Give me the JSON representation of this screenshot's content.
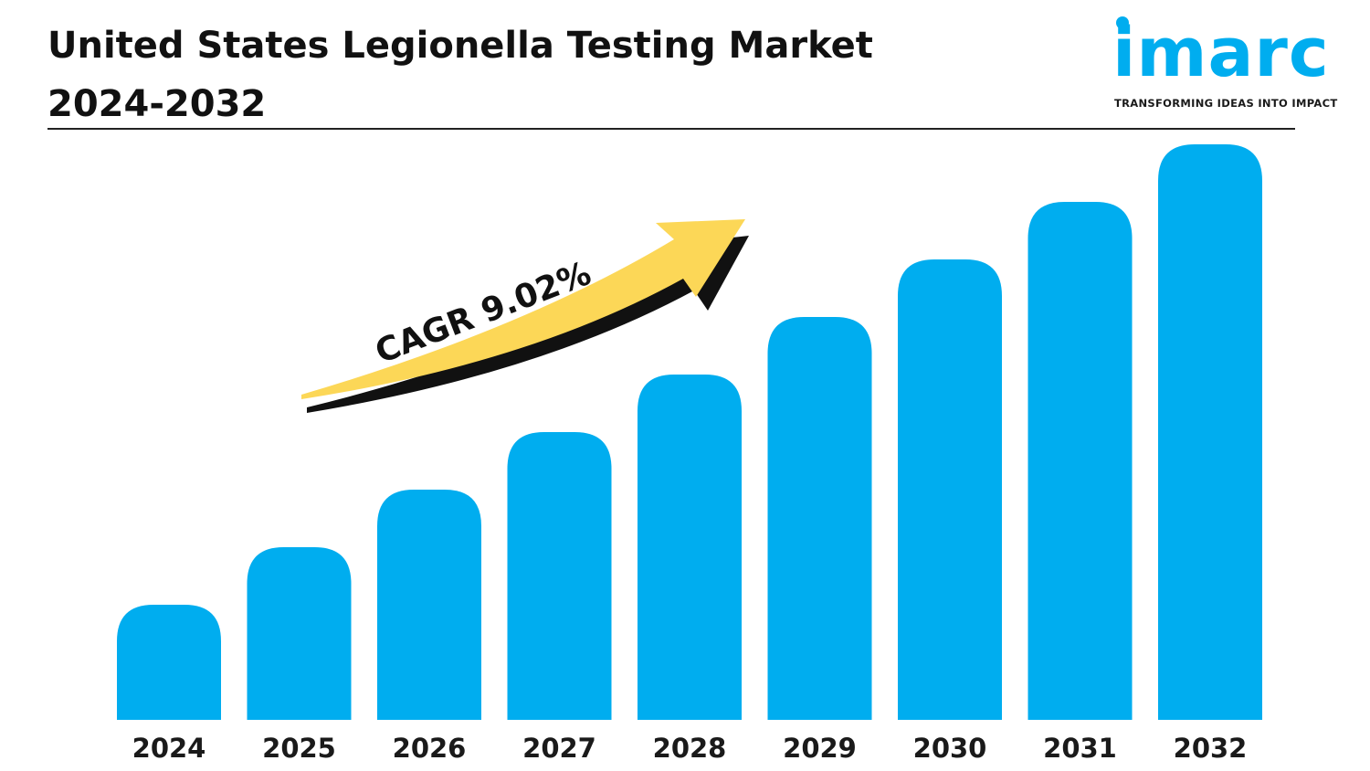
{
  "header": {
    "title_line1": "United States Legionella Testing Market",
    "title_line2": "2024-2032"
  },
  "logo": {
    "wordmark": "imarc",
    "tagline": "TRANSFORMING IDEAS INTO IMPACT",
    "color": "#00adef"
  },
  "chart_data": {
    "type": "bar",
    "categories": [
      "2024",
      "2025",
      "2026",
      "2027",
      "2028",
      "2029",
      "2030",
      "2031",
      "2032"
    ],
    "values": [
      1.0,
      1.5,
      2.0,
      2.5,
      3.0,
      3.5,
      4.0,
      4.5,
      5.0
    ],
    "ylim": [
      0,
      5
    ],
    "grid": false,
    "bar_color": "#00adef",
    "annotation": {
      "label": "CAGR 9.02%",
      "arrow_color": "#fcd757"
    }
  }
}
